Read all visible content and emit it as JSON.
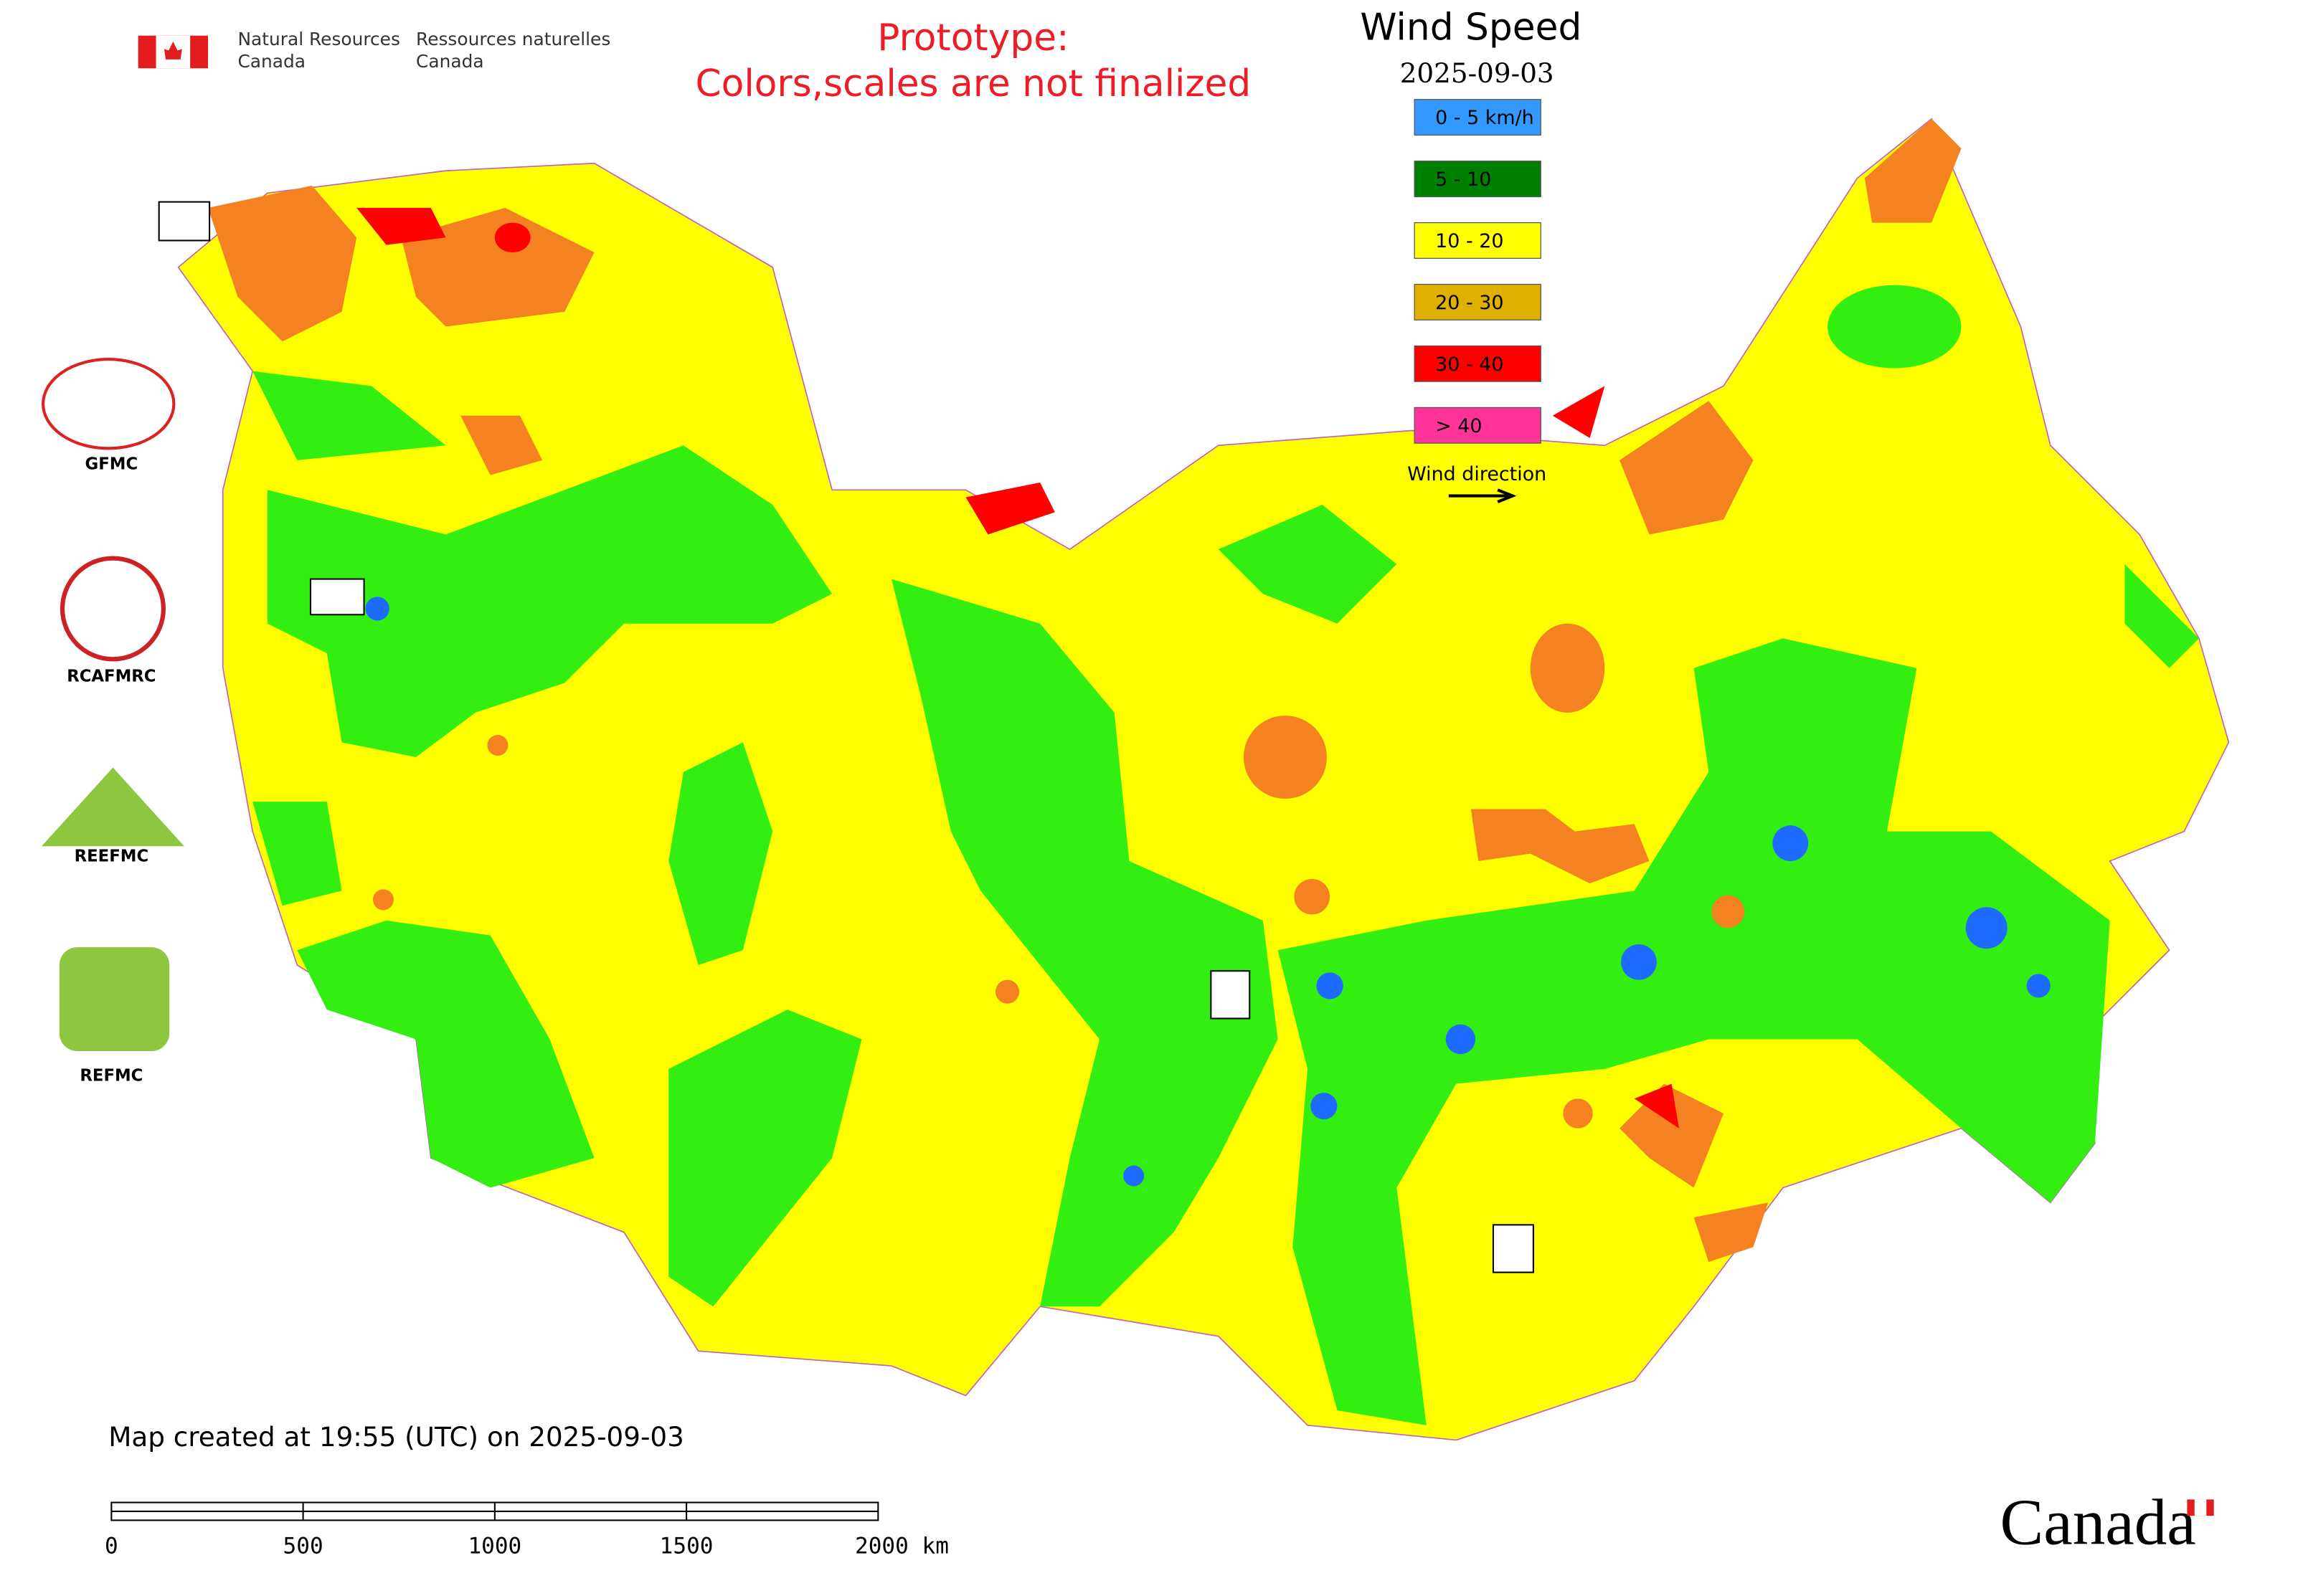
{
  "header": {
    "department_en_line1": "Natural Resources",
    "department_en_line2": "Canada",
    "department_fr_line1": "Ressources naturelles",
    "department_fr_line2": "Canada"
  },
  "notice": {
    "line1": "Prototype:",
    "line2": "Colors,scales are not finalized"
  },
  "legend": {
    "title": "Wind Speed",
    "date": "2025-09-03",
    "items": [
      {
        "label": "0 - 5 km/h",
        "color": "#3399ff"
      },
      {
        "label": "5 - 10",
        "color": "#008000"
      },
      {
        "label": "10 - 20",
        "color": "#ffff00"
      },
      {
        "label": "20 - 30",
        "color": "#e0b000"
      },
      {
        "label": "30 - 40",
        "color": "#ff0000"
      },
      {
        "label": "> 40",
        "color": "#ff3399"
      }
    ],
    "wind_direction": "Wind direction"
  },
  "logos": [
    {
      "label": "GFMC"
    },
    {
      "label": "RCAFMRC"
    },
    {
      "label": "REEFMC"
    },
    {
      "label": "REFMC"
    }
  ],
  "footer": {
    "created": "Map created at 19:55 (UTC) on 2025-09-03",
    "scale_labels": [
      "0",
      "500",
      "1000",
      "1500",
      "2000 km"
    ],
    "wordmark": "Canada"
  }
}
